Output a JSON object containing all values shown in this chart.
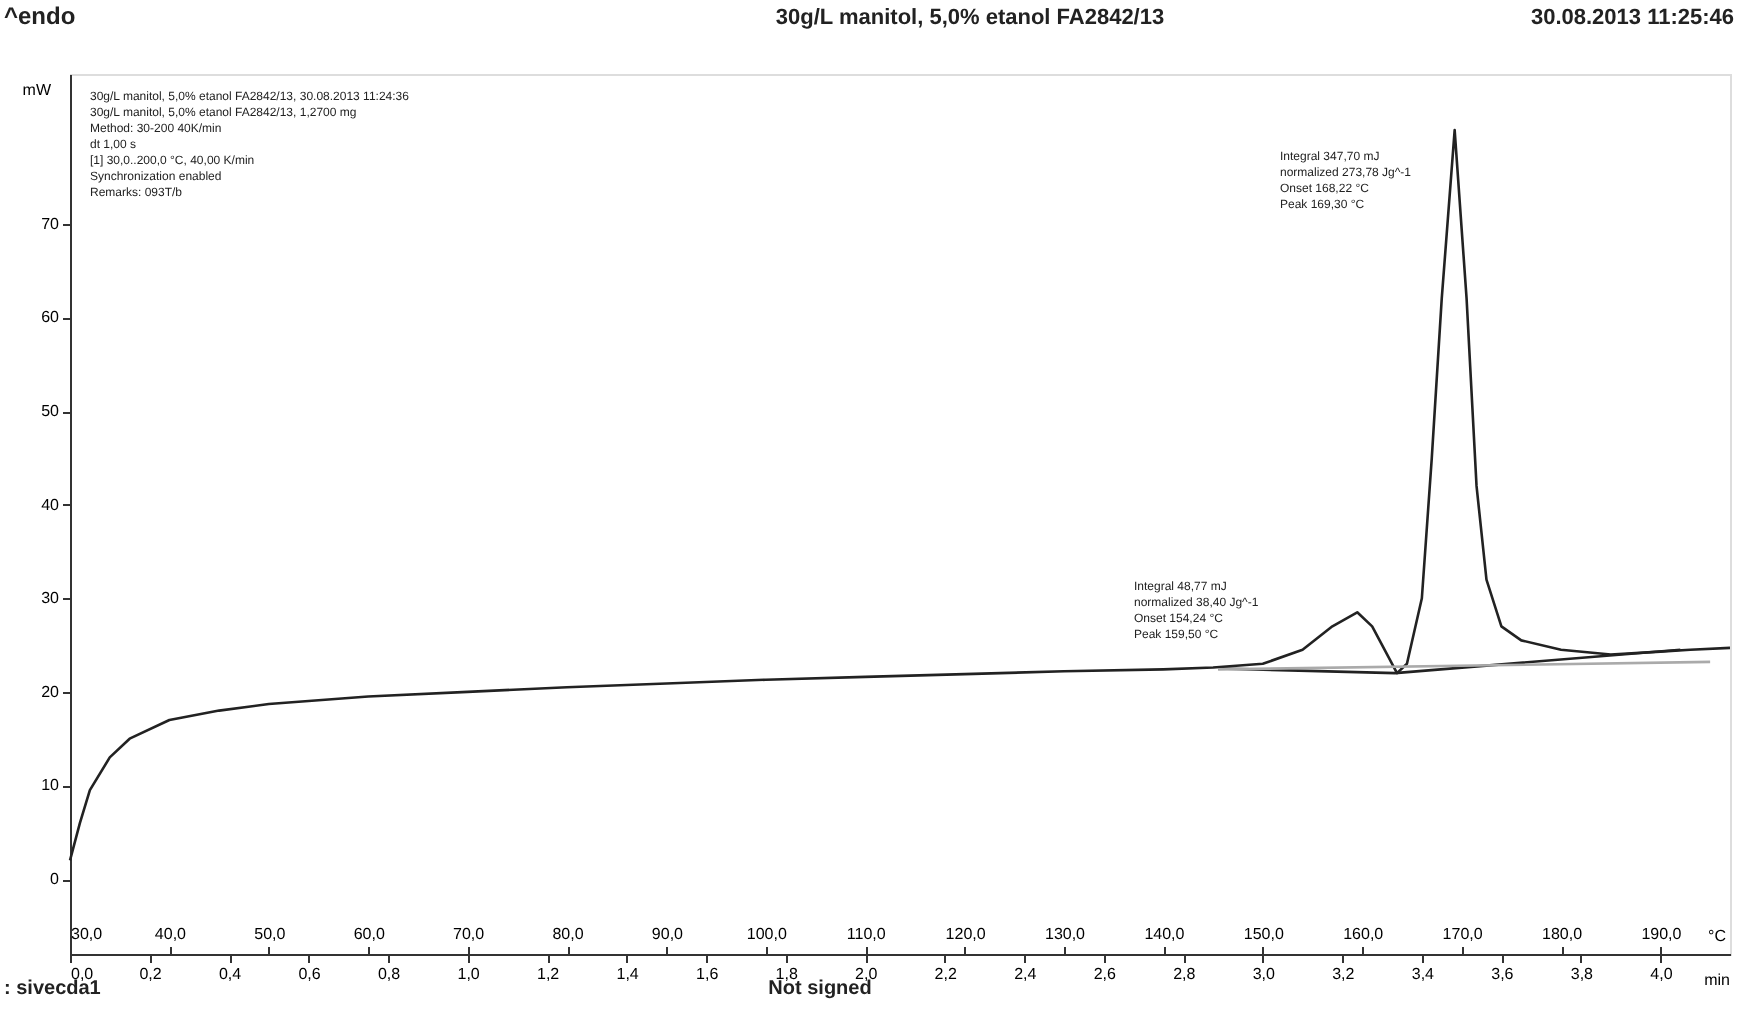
{
  "chart_data": {
    "type": "line",
    "title": "30g/L manitol, 5,0% etanol FA2842/13",
    "ylabel": "mW",
    "xlabel": "°C",
    "x2label": "min",
    "xlim": [
      30,
      197
    ],
    "ylim": [
      -8,
      86
    ],
    "xticks": [
      {
        "value": 30,
        "label": "30,0"
      },
      {
        "value": 40,
        "label": "40,0"
      },
      {
        "value": 50,
        "label": "50,0"
      },
      {
        "value": 60,
        "label": "60,0"
      },
      {
        "value": 70,
        "label": "70,0"
      },
      {
        "value": 80,
        "label": "80,0"
      },
      {
        "value": 90,
        "label": "90,0"
      },
      {
        "value": 100,
        "label": "100,0"
      },
      {
        "value": 110,
        "label": "110,0"
      },
      {
        "value": 120,
        "label": "120,0"
      },
      {
        "value": 130,
        "label": "130,0"
      },
      {
        "value": 140,
        "label": "140,0"
      },
      {
        "value": 150,
        "label": "150,0"
      },
      {
        "value": 160,
        "label": "160,0"
      },
      {
        "value": 170,
        "label": "170,0"
      },
      {
        "value": 180,
        "label": "180,0"
      },
      {
        "value": 190,
        "label": "190,0"
      }
    ],
    "x2lim": [
      0,
      4.175
    ],
    "x2ticks": [
      {
        "value": 0,
        "label": "0,0"
      },
      {
        "value": 0.2,
        "label": "0,2"
      },
      {
        "value": 0.4,
        "label": "0,4"
      },
      {
        "value": 0.6,
        "label": "0,6"
      },
      {
        "value": 0.8,
        "label": "0,8"
      },
      {
        "value": 1.0,
        "label": "1,0"
      },
      {
        "value": 1.2,
        "label": "1,2"
      },
      {
        "value": 1.4,
        "label": "1,4"
      },
      {
        "value": 1.6,
        "label": "1,6"
      },
      {
        "value": 1.8,
        "label": "1,8"
      },
      {
        "value": 2.0,
        "label": "2,0"
      },
      {
        "value": 2.2,
        "label": "2,2"
      },
      {
        "value": 2.4,
        "label": "2,4"
      },
      {
        "value": 2.6,
        "label": "2,6"
      },
      {
        "value": 2.8,
        "label": "2,8"
      },
      {
        "value": 3.0,
        "label": "3,0"
      },
      {
        "value": 3.2,
        "label": "3,2"
      },
      {
        "value": 3.4,
        "label": "3,4"
      },
      {
        "value": 3.6,
        "label": "3,6"
      },
      {
        "value": 3.8,
        "label": "3,8"
      },
      {
        "value": 4.0,
        "label": "4,0"
      }
    ],
    "yticks": [
      0,
      10,
      20,
      30,
      40,
      50,
      60,
      70
    ],
    "grid": false,
    "marker": "none",
    "line_style": "solid",
    "series": [
      {
        "color": "#222222",
        "x": [
          30,
          31,
          32,
          34,
          36,
          40,
          45,
          50,
          60,
          70,
          80,
          90,
          100,
          110,
          120,
          130,
          140,
          145,
          150,
          154,
          157,
          159.5,
          161,
          162.5,
          163.5,
          164.5,
          166,
          167,
          168,
          169.3,
          170.5,
          171.5,
          172.5,
          174,
          176,
          180,
          185,
          190,
          193,
          197
        ],
        "values": [
          2,
          6,
          9.5,
          13,
          15,
          17,
          18,
          18.7,
          19.5,
          20,
          20.5,
          20.9,
          21.3,
          21.6,
          21.9,
          22.2,
          22.4,
          22.6,
          23,
          24.5,
          27,
          28.5,
          27,
          24,
          22,
          23,
          30,
          45,
          62,
          80,
          62,
          42,
          32,
          27,
          25.5,
          24.5,
          24,
          24.3,
          24.5,
          24.7
        ]
      },
      {
        "color": "#222222",
        "x": [
          145.5,
          163.3,
          192
        ],
        "values": [
          22.5,
          22,
          24.5
        ]
      },
      {
        "color": "#aaaaaa",
        "x": [
          145.5,
          195
        ],
        "values": [
          22.4,
          23.2
        ]
      }
    ],
    "annotations": [
      "^endo",
      "30.08.2013 11:25:46",
      "30g/L manitol, 5,0% etanol FA2842/13, 30.08.2013 11:24:36\n30g/L manitol, 5,0% etanol FA2842/13, 1,2700 mg\nMethod: 30-200 40K/min\ndt 1,00 s\n[1] 30,0..200,0 °C, 40,00 K/min\nSynchronization enabled\nRemarks: 093T/b",
      ": sivecda1",
      "Not signed",
      "Integral 347,70 mJ\nnormalized 273,78 Jg^-1\nOnset 168,22 °C\nPeak 169,30 °C",
      "Integral 48,77 mJ\nnormalized 38,40 Jg^-1\nOnset 154,24 °C\nPeak 159,50 °C"
    ]
  }
}
